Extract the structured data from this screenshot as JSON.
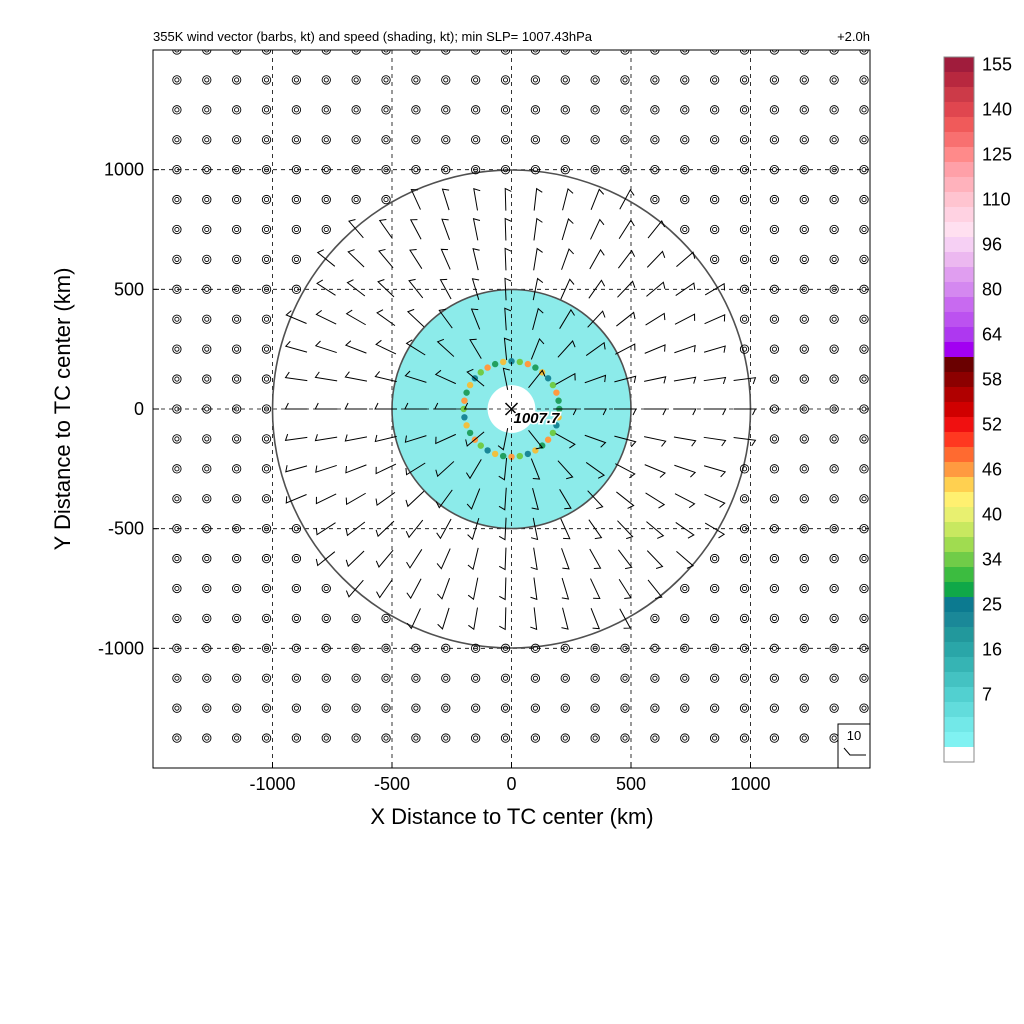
{
  "chart_data": {
    "type": "vector-field",
    "title": "355K wind vector (barbs, kt) and speed (shading, kt); min SLP= 1007.43hPa",
    "time_label": "+2.0h",
    "xlabel": "X Distance to TC center (km)",
    "ylabel": "Y Distance to TC center (km)",
    "xlim": [
      -1500,
      1500
    ],
    "ylim": [
      -1500,
      1500
    ],
    "xticks": [
      -1000,
      -500,
      0,
      500,
      1000
    ],
    "yticks": [
      -1000,
      -500,
      0,
      500,
      1000
    ],
    "xtick_labels": [
      "-1000",
      "-500",
      "0",
      "500",
      "1000"
    ],
    "ytick_labels": [
      "1000",
      "500",
      "0",
      "-500",
      "-1000"
    ],
    "grid": true,
    "range_rings_km": [
      500,
      1000
    ],
    "center_marker": {
      "x": 0,
      "y": 0,
      "label": "1007.7"
    },
    "barb_spacing_km": 125,
    "barb_active_radius_km": 1000,
    "speed_shading": {
      "annulus_km": [
        100,
        500
      ],
      "color": "#7fe9e8",
      "eyewall_radius_km": 200
    },
    "reference_barb_label": "10",
    "colorbar": {
      "tick_labels": [
        "155",
        "140",
        "125",
        "110",
        "96",
        "80",
        "64",
        "58",
        "52",
        "46",
        "40",
        "34",
        "25",
        "16",
        "7"
      ],
      "colors": [
        "#a01c3c",
        "#b8283f",
        "#cc3a48",
        "#e0464f",
        "#f05a5a",
        "#f87070",
        "#ff8a8a",
        "#ffa0a8",
        "#ffb2bc",
        "#ffc4d0",
        "#ffd2e2",
        "#ffe0f0",
        "#f6d0f4",
        "#ecb8f0",
        "#e09ef0",
        "#d488f0",
        "#c86af0",
        "#bc52f0",
        "#ae38f0",
        "#a200f2",
        "#6a0000",
        "#8c0000",
        "#b00000",
        "#d00000",
        "#f01010",
        "#ff3820",
        "#ff6a30",
        "#ff9a40",
        "#ffd050",
        "#fff070",
        "#e8f070",
        "#c8e860",
        "#a0dc50",
        "#70cc48",
        "#3cbc40",
        "#10a848",
        "#0c7a90",
        "#1a8898",
        "#22989c",
        "#2aa6a8",
        "#36b4b4",
        "#44c2c2",
        "#52d0d0",
        "#62dcdc",
        "#72e8e8",
        "#80f2f2",
        "#ffffff"
      ]
    }
  }
}
